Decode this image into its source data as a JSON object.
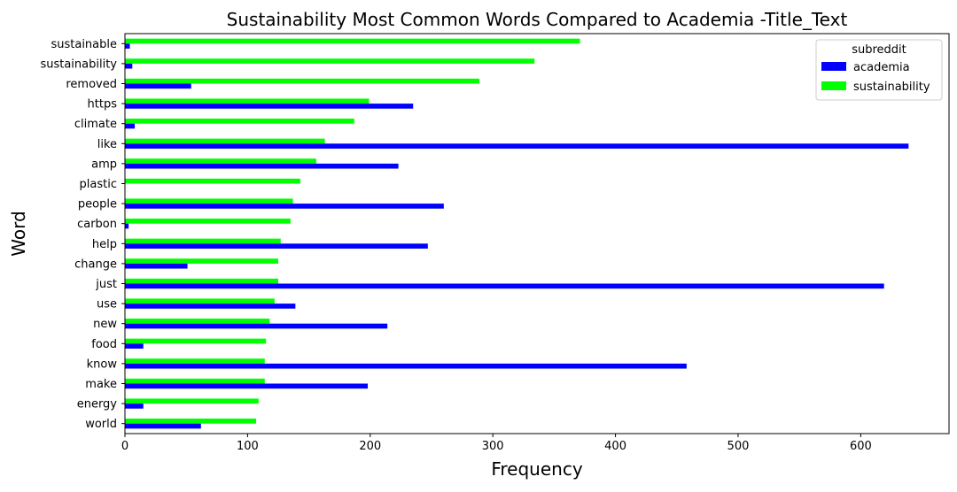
{
  "chart_data": {
    "type": "bar",
    "orientation": "horizontal",
    "title": "Sustainability Most Common Words Compared to Academia -Title_Text",
    "xlabel": "Frequency",
    "ylabel": "Word",
    "xlim": [
      0,
      672
    ],
    "xticks": [
      0,
      100,
      200,
      300,
      400,
      500,
      600
    ],
    "grid": false,
    "legend": {
      "title": "subreddit",
      "placement": "top-right"
    },
    "categories": [
      "sustainable",
      "sustainability",
      "removed",
      "https",
      "climate",
      "like",
      "amp",
      "plastic",
      "people",
      "carbon",
      "help",
      "change",
      "just",
      "use",
      "new",
      "food",
      "know",
      "make",
      "energy",
      "world"
    ],
    "series": [
      {
        "name": "academia",
        "color": "#0000ff",
        "values": [
          4,
          6,
          54,
          235,
          8,
          639,
          223,
          0,
          260,
          3,
          247,
          51,
          619,
          139,
          214,
          15,
          458,
          198,
          15,
          62
        ]
      },
      {
        "name": "sustainability",
        "color": "#00ff00",
        "values": [
          371,
          334,
          289,
          199,
          187,
          163,
          156,
          143,
          137,
          135,
          127,
          125,
          125,
          122,
          118,
          115,
          114,
          114,
          109,
          107
        ]
      }
    ]
  }
}
